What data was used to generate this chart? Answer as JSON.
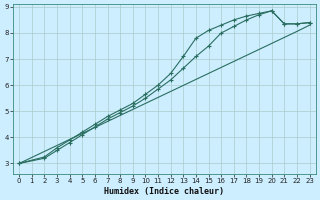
{
  "xlabel": "Humidex (Indice chaleur)",
  "bg_color": "#cceeff",
  "grid_color": "#aacccc",
  "line_color": "#2a6e60",
  "xlim": [
    -0.5,
    23.5
  ],
  "ylim": [
    2.6,
    9.1
  ],
  "xticks": [
    0,
    1,
    2,
    3,
    4,
    5,
    6,
    7,
    8,
    9,
    10,
    11,
    12,
    13,
    14,
    15,
    16,
    17,
    18,
    19,
    20,
    21,
    22,
    23
  ],
  "yticks": [
    3,
    4,
    5,
    6,
    7,
    8,
    9
  ],
  "line1_x": [
    0,
    1,
    2,
    3,
    4,
    5,
    6,
    7,
    8,
    9,
    10,
    11,
    12,
    13,
    14,
    15,
    16,
    17,
    18,
    19,
    20,
    21,
    22,
    23
  ],
  "line1_y": [
    3.0,
    3.23,
    3.46,
    3.69,
    3.92,
    4.15,
    4.38,
    4.61,
    4.84,
    5.07,
    5.3,
    5.53,
    5.76,
    5.99,
    6.22,
    6.45,
    6.68,
    6.91,
    7.14,
    7.37,
    7.6,
    7.83,
    8.06,
    8.3
  ],
  "line2_x": [
    0,
    2,
    3,
    4,
    5,
    6,
    7,
    8,
    9,
    10,
    11,
    12,
    13,
    14,
    15,
    16,
    17,
    18,
    19,
    20,
    21,
    22,
    23
  ],
  "line2_y": [
    3.0,
    3.25,
    3.6,
    3.9,
    4.2,
    4.5,
    4.8,
    5.05,
    5.3,
    5.65,
    6.0,
    6.45,
    7.1,
    7.8,
    8.1,
    8.3,
    8.5,
    8.65,
    8.75,
    8.85,
    8.35,
    8.35,
    8.4
  ],
  "line3_x": [
    0,
    2,
    3,
    4,
    5,
    6,
    7,
    8,
    9,
    10,
    11,
    12,
    13,
    14,
    15,
    16,
    17,
    18,
    19,
    20,
    21,
    22,
    23
  ],
  "line3_y": [
    3.0,
    3.2,
    3.5,
    3.8,
    4.1,
    4.4,
    4.7,
    4.95,
    5.2,
    5.5,
    5.85,
    6.2,
    6.65,
    7.1,
    7.5,
    8.0,
    8.25,
    8.5,
    8.7,
    8.85,
    8.35,
    8.35,
    8.4
  ]
}
